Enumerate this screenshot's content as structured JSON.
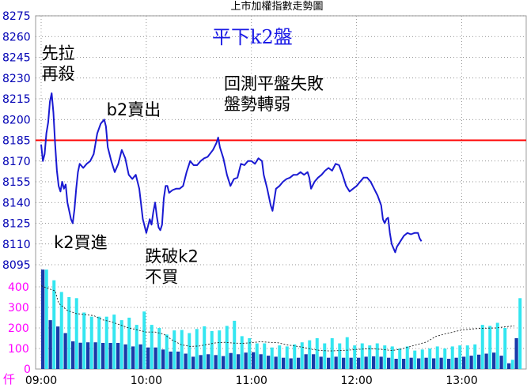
{
  "chart_data": {
    "type": "line",
    "title": "上市加權指數走勢圖",
    "heading": "平下k2盤",
    "volume_unit": "仟",
    "y_ticks": [
      8275,
      8260,
      8245,
      8230,
      8215,
      8200,
      8185,
      8170,
      8155,
      8140,
      8125,
      8110,
      8095
    ],
    "ylim": [
      8095,
      8275
    ],
    "reference_line": 8185,
    "volume_ticks": [
      400,
      300,
      200,
      100,
      0
    ],
    "volume_lim": [
      0,
      500
    ],
    "x_ticks": [
      "09:00",
      "10:00",
      "11:00",
      "12:00",
      "13:00"
    ],
    "x_tick_minutes": [
      0,
      60,
      120,
      180,
      240
    ],
    "xlim_minutes": [
      0,
      270
    ],
    "grid": true,
    "annotations": [
      {
        "lines": [
          "先拉",
          "再殺"
        ],
        "at_minute": 3,
        "at_value": 8244
      },
      {
        "lines": [
          "b2賣出"
        ],
        "at_minute": 40,
        "at_value": 8203
      },
      {
        "lines": [
          "回測平盤失敗",
          "盤勢轉弱"
        ],
        "at_minute": 107,
        "at_value": 8222
      },
      {
        "lines": [
          "k2買進"
        ],
        "at_minute": 10,
        "at_value": 8107
      },
      {
        "lines": [
          "跌破k2",
          "不買"
        ],
        "at_minute": 62,
        "at_value": 8097
      }
    ],
    "series": [
      {
        "values": [
          [
            0,
            8182
          ],
          [
            1,
            8170
          ],
          [
            2,
            8175
          ],
          [
            3,
            8190
          ],
          [
            4,
            8198
          ],
          [
            5,
            8213
          ],
          [
            6,
            8219
          ],
          [
            7,
            8205
          ],
          [
            8,
            8182
          ],
          [
            9,
            8163
          ],
          [
            10,
            8152
          ],
          [
            11,
            8148
          ],
          [
            12,
            8155
          ],
          [
            13,
            8150
          ],
          [
            14,
            8153
          ],
          [
            15,
            8140
          ],
          [
            17,
            8128
          ],
          [
            18,
            8125
          ],
          [
            19,
            8135
          ],
          [
            20,
            8150
          ],
          [
            21,
            8162
          ],
          [
            22,
            8168
          ],
          [
            24,
            8165
          ],
          [
            26,
            8168
          ],
          [
            28,
            8170
          ],
          [
            30,
            8175
          ],
          [
            32,
            8190
          ],
          [
            34,
            8197
          ],
          [
            36,
            8200
          ],
          [
            37,
            8195
          ],
          [
            38,
            8180
          ],
          [
            40,
            8170
          ],
          [
            42,
            8162
          ],
          [
            44,
            8168
          ],
          [
            46,
            8178
          ],
          [
            48,
            8172
          ],
          [
            50,
            8160
          ],
          [
            52,
            8157
          ],
          [
            54,
            8160
          ],
          [
            56,
            8150
          ],
          [
            58,
            8128
          ],
          [
            60,
            8118
          ],
          [
            61,
            8123
          ],
          [
            62,
            8128
          ],
          [
            63,
            8124
          ],
          [
            64,
            8133
          ],
          [
            65,
            8140
          ],
          [
            66,
            8130
          ],
          [
            67,
            8122
          ],
          [
            68,
            8120
          ],
          [
            69,
            8124
          ],
          [
            70,
            8143
          ],
          [
            71,
            8152
          ],
          [
            72,
            8152
          ],
          [
            73,
            8147
          ],
          [
            75,
            8149
          ],
          [
            77,
            8150
          ],
          [
            79,
            8150
          ],
          [
            81,
            8152
          ],
          [
            83,
            8162
          ],
          [
            85,
            8170
          ],
          [
            87,
            8167
          ],
          [
            89,
            8167
          ],
          [
            91,
            8170
          ],
          [
            93,
            8172
          ],
          [
            95,
            8173
          ],
          [
            98,
            8178
          ],
          [
            100,
            8183
          ],
          [
            101,
            8187
          ],
          [
            102,
            8180
          ],
          [
            104,
            8172
          ],
          [
            106,
            8160
          ],
          [
            108,
            8152
          ],
          [
            110,
            8157
          ],
          [
            112,
            8158
          ],
          [
            114,
            8168
          ],
          [
            116,
            8167
          ],
          [
            118,
            8170
          ],
          [
            120,
            8170
          ],
          [
            122,
            8168
          ],
          [
            124,
            8172
          ],
          [
            126,
            8170
          ],
          [
            127,
            8160
          ],
          [
            129,
            8150
          ],
          [
            131,
            8138
          ],
          [
            132,
            8134
          ],
          [
            134,
            8150
          ],
          [
            136,
            8152
          ],
          [
            138,
            8155
          ],
          [
            140,
            8157
          ],
          [
            142,
            8158
          ],
          [
            144,
            8160
          ],
          [
            146,
            8160
          ],
          [
            148,
            8162
          ],
          [
            150,
            8160
          ],
          [
            152,
            8162
          ],
          [
            153,
            8158
          ],
          [
            154,
            8150
          ],
          [
            156,
            8155
          ],
          [
            158,
            8158
          ],
          [
            160,
            8160
          ],
          [
            162,
            8163
          ],
          [
            164,
            8165
          ],
          [
            166,
            8163
          ],
          [
            168,
            8168
          ],
          [
            170,
            8167
          ],
          [
            172,
            8160
          ],
          [
            174,
            8152
          ],
          [
            176,
            8148
          ],
          [
            178,
            8150
          ],
          [
            180,
            8152
          ],
          [
            182,
            8155
          ],
          [
            184,
            8158
          ],
          [
            186,
            8158
          ],
          [
            188,
            8155
          ],
          [
            190,
            8150
          ],
          [
            192,
            8145
          ],
          [
            194,
            8138
          ],
          [
            195,
            8128
          ],
          [
            196,
            8125
          ],
          [
            197,
            8128
          ],
          [
            198,
            8129
          ],
          [
            199,
            8118
          ],
          [
            200,
            8110
          ],
          [
            202,
            8104
          ],
          [
            203,
            8108
          ],
          [
            205,
            8112
          ],
          [
            207,
            8116
          ],
          [
            209,
            8118
          ],
          [
            211,
            8117
          ],
          [
            213,
            8118
          ],
          [
            215,
            8118
          ],
          [
            216,
            8114
          ],
          [
            217,
            8112
          ]
        ]
      }
    ],
    "volume": {
      "dark_bars": [
        484,
        238,
        207,
        175,
        135,
        128,
        130,
        130,
        127,
        127,
        127,
        120,
        110,
        120,
        105,
        105,
        95,
        85,
        85,
        75,
        60,
        68,
        72,
        68,
        63,
        78,
        72,
        80,
        82,
        72,
        65,
        60,
        55,
        52,
        55,
        72,
        72,
        60,
        55,
        60,
        55,
        55,
        55,
        60,
        62,
        60,
        55,
        50,
        50,
        55,
        52,
        55,
        52,
        55,
        50,
        55,
        60,
        65,
        70,
        75,
        80,
        65,
        28,
        150
      ],
      "light_bars": [
        484,
        432,
        375,
        350,
        345,
        275,
        255,
        255,
        255,
        265,
        238,
        250,
        215,
        280,
        215,
        200,
        168,
        188,
        190,
        175,
        195,
        208,
        185,
        188,
        210,
        235,
        160,
        150,
        125,
        125,
        105,
        115,
        110,
        120,
        130,
        140,
        150,
        125,
        150,
        125,
        155,
        115,
        125,
        115,
        125,
        115,
        110,
        100,
        110,
        90,
        95,
        100,
        110,
        100,
        110,
        115,
        115,
        120,
        215,
        210,
        225,
        200,
        45,
        345
      ],
      "moving_average": [
        [
          0,
          405
        ],
        [
          8,
          380
        ],
        [
          10,
          320
        ],
        [
          15,
          285
        ],
        [
          20,
          270
        ],
        [
          25,
          265
        ],
        [
          30,
          260
        ],
        [
          35,
          240
        ],
        [
          40,
          230
        ],
        [
          45,
          215
        ],
        [
          50,
          200
        ],
        [
          55,
          190
        ],
        [
          60,
          180
        ],
        [
          65,
          180
        ],
        [
          70,
          170
        ],
        [
          75,
          140
        ],
        [
          80,
          118
        ],
        [
          85,
          110
        ],
        [
          90,
          112
        ],
        [
          95,
          120
        ],
        [
          100,
          128
        ],
        [
          105,
          130
        ],
        [
          110,
          126
        ],
        [
          115,
          125
        ],
        [
          120,
          128
        ],
        [
          125,
          133
        ],
        [
          130,
          130
        ],
        [
          135,
          128
        ],
        [
          140,
          118
        ],
        [
          145,
          112
        ],
        [
          150,
          105
        ],
        [
          155,
          95
        ],
        [
          160,
          90
        ],
        [
          165,
          88
        ],
        [
          170,
          90
        ],
        [
          175,
          92
        ],
        [
          180,
          95
        ],
        [
          185,
          98
        ],
        [
          190,
          98
        ],
        [
          195,
          95
        ],
        [
          200,
          90
        ],
        [
          205,
          96
        ],
        [
          210,
          108
        ],
        [
          215,
          120
        ],
        [
          220,
          132
        ],
        [
          225,
          158
        ],
        [
          230,
          170
        ],
        [
          235,
          180
        ],
        [
          240,
          190
        ],
        [
          250,
          198
        ],
        [
          260,
          200
        ],
        [
          264,
          205
        ],
        [
          270,
          210
        ]
      ]
    },
    "colors": {
      "price_line": "#1a1ad2",
      "reference_line": "#ff0000",
      "volume_dark": "#1a3aa8",
      "volume_light": "#33e6f0",
      "grid": "#707070",
      "y_ticks": "#0000b4",
      "volume_ticks": "#ff00ff"
    }
  }
}
